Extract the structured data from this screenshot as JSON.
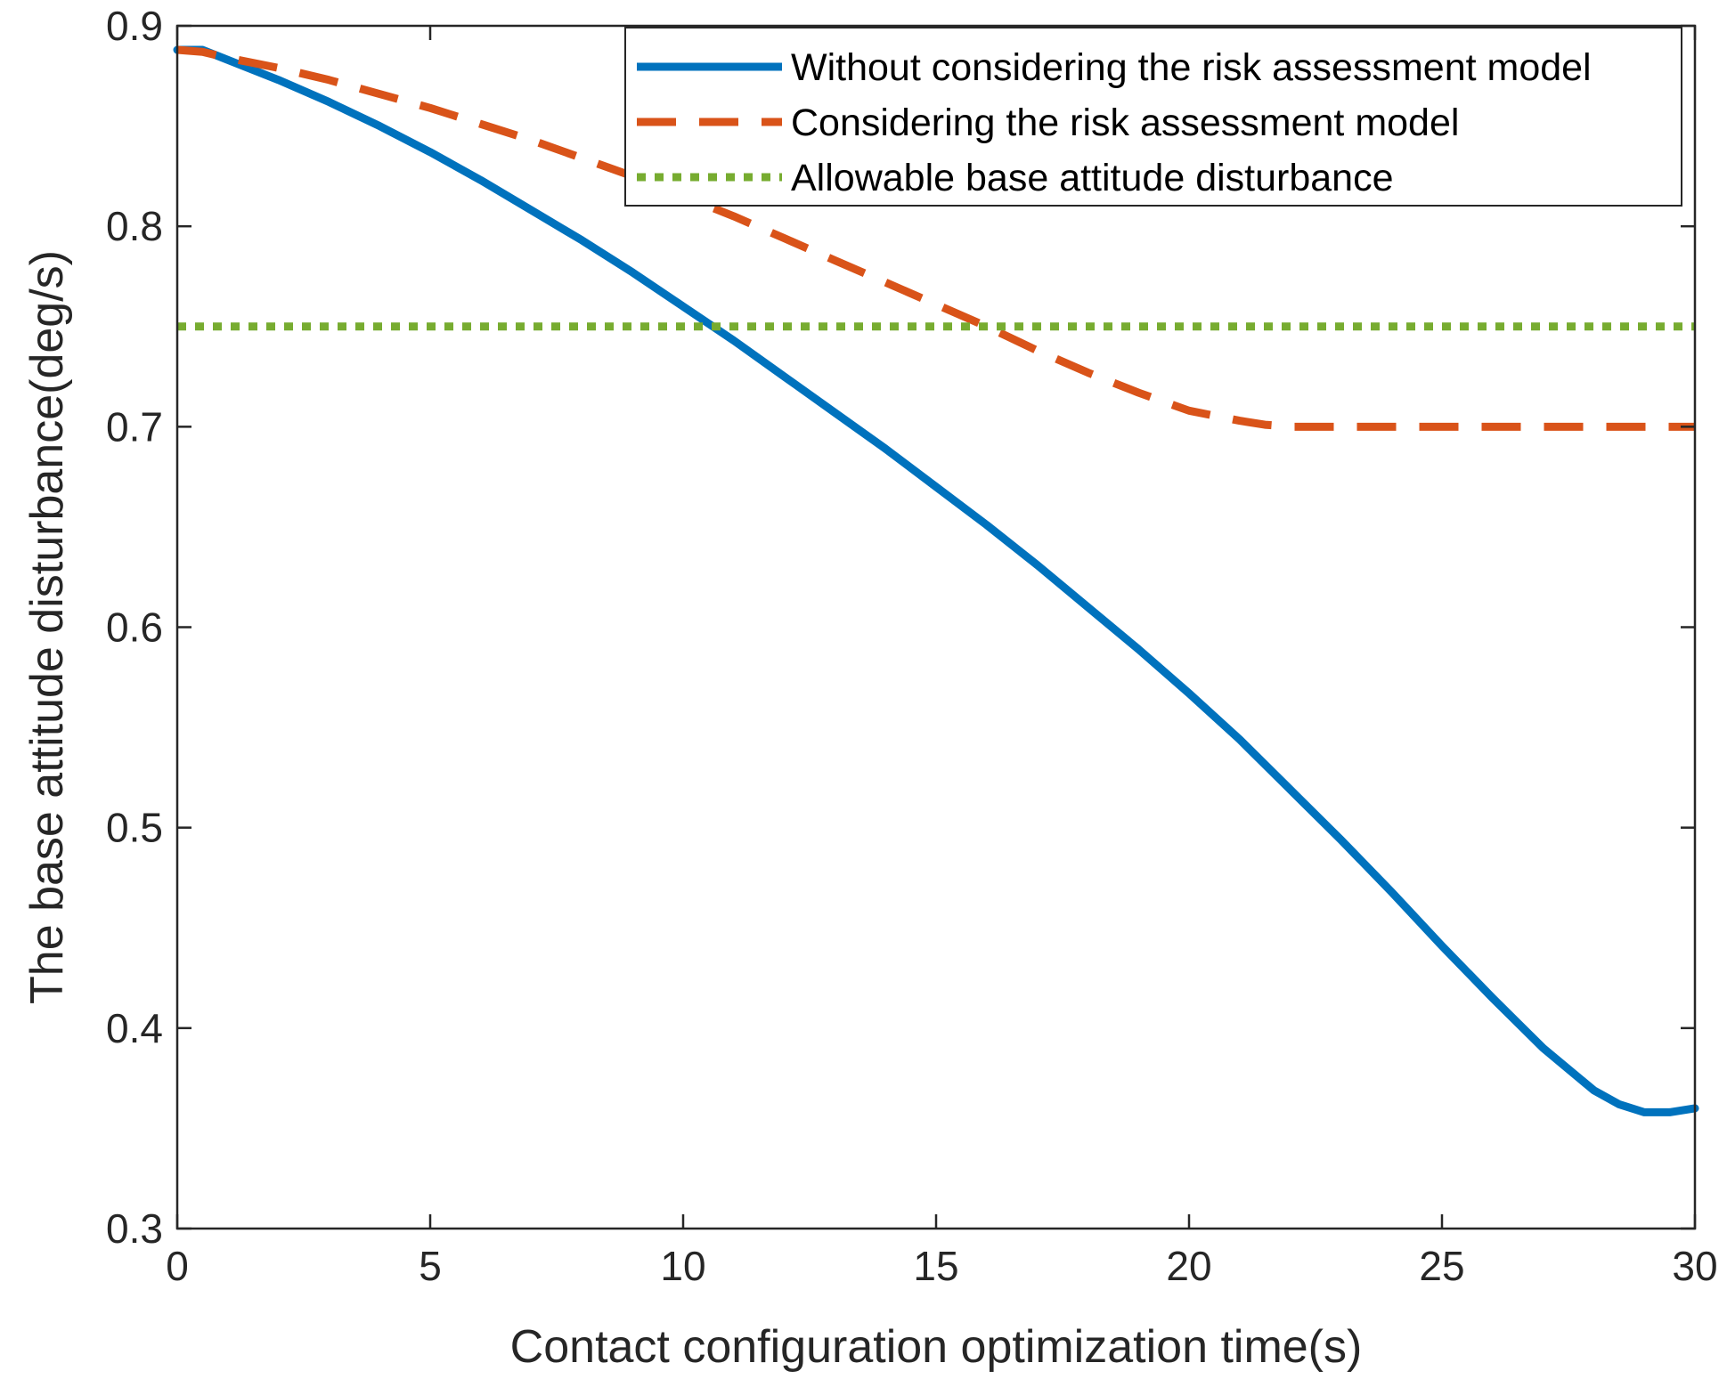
{
  "chart_data": {
    "type": "line",
    "title": "",
    "xlabel": "Contact configuration optimization time(s)",
    "ylabel": "The base attitude disturbance(deg/s)",
    "xlim": [
      0,
      30
    ],
    "ylim": [
      0.3,
      0.9
    ],
    "xticks": [
      0,
      5,
      10,
      15,
      20,
      25,
      30
    ],
    "yticks": [
      0.3,
      0.4,
      0.5,
      0.6,
      0.7,
      0.8,
      0.9
    ],
    "xtick_labels": [
      "0",
      "5",
      "10",
      "15",
      "20",
      "25",
      "30"
    ],
    "ytick_labels": [
      "0.3",
      "0.4",
      "0.5",
      "0.6",
      "0.7",
      "0.8",
      "0.9"
    ],
    "grid": false,
    "legend_position": "top-right",
    "series": [
      {
        "name": "Without considering the risk assessment model",
        "color": "#0072BD",
        "style": "solid",
        "x": [
          0,
          0.5,
          1,
          2,
          3,
          4,
          5,
          6,
          7,
          8,
          9,
          10,
          11,
          12,
          13,
          14,
          15,
          16,
          17,
          18,
          19,
          20,
          21,
          22,
          23,
          24,
          25,
          26,
          27,
          28,
          28.5,
          29,
          29.5,
          30
        ],
        "y": [
          0.888,
          0.888,
          0.883,
          0.873,
          0.862,
          0.85,
          0.837,
          0.823,
          0.808,
          0.793,
          0.777,
          0.76,
          0.743,
          0.725,
          0.707,
          0.689,
          0.67,
          0.651,
          0.631,
          0.61,
          0.589,
          0.567,
          0.544,
          0.519,
          0.494,
          0.468,
          0.441,
          0.415,
          0.39,
          0.369,
          0.362,
          0.358,
          0.358,
          0.36
        ]
      },
      {
        "name": "Considering the risk assessment model",
        "color": "#D95319",
        "style": "dashed",
        "x": [
          0,
          0.5,
          1,
          2,
          3,
          4,
          5,
          6,
          7,
          8,
          9,
          10,
          11,
          12,
          13,
          14,
          15,
          16,
          17,
          18,
          19,
          20,
          21,
          21.5,
          22,
          22.5,
          23,
          24,
          25,
          26,
          27,
          28,
          29,
          30
        ],
        "y": [
          0.888,
          0.887,
          0.884,
          0.879,
          0.873,
          0.866,
          0.859,
          0.851,
          0.843,
          0.834,
          0.825,
          0.815,
          0.805,
          0.794,
          0.783,
          0.772,
          0.761,
          0.75,
          0.738,
          0.727,
          0.717,
          0.708,
          0.703,
          0.701,
          0.7,
          0.7,
          0.7,
          0.7,
          0.7,
          0.7,
          0.7,
          0.7,
          0.7,
          0.7
        ]
      },
      {
        "name": "Allowable base attitude disturbance",
        "color": "#77AC30",
        "style": "dotted",
        "x": [
          0,
          30
        ],
        "y": [
          0.75,
          0.75
        ]
      }
    ]
  }
}
